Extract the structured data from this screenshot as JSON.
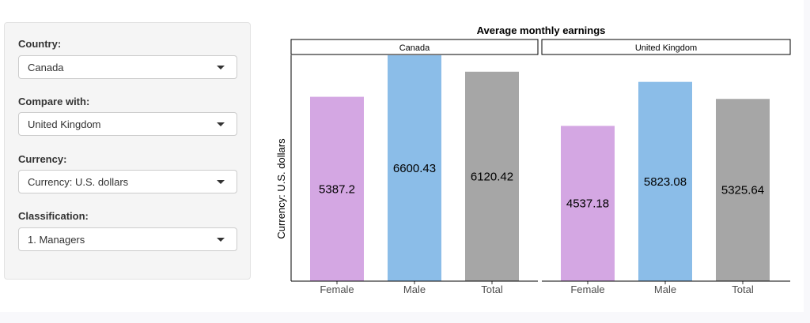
{
  "controls": {
    "country_label": "Country:",
    "country_value": "Canada",
    "compare_label": "Compare with:",
    "compare_value": "United Kingdom",
    "currency_label": "Currency:",
    "currency_value": "Currency: U.S. dollars",
    "classification_label": "Classification:",
    "classification_value": "1. Managers",
    "caret_icon": "caret-down-icon"
  },
  "chart_data": {
    "type": "bar",
    "title": "Average monthly earnings",
    "ylabel": "Currency: U.S. dollars",
    "xlabel": "",
    "categories": [
      "Female",
      "Male",
      "Total"
    ],
    "colors": [
      "#d4a7e3",
      "#8bbde8",
      "#a6a6a6"
    ],
    "ylim": [
      0,
      6600.43
    ],
    "grid": false,
    "facets": [
      {
        "name": "Canada",
        "values": [
          5387.2,
          6600.43,
          6120.42
        ]
      },
      {
        "name": "United Kingdom",
        "values": [
          4537.18,
          5823.08,
          5325.64
        ]
      }
    ]
  }
}
